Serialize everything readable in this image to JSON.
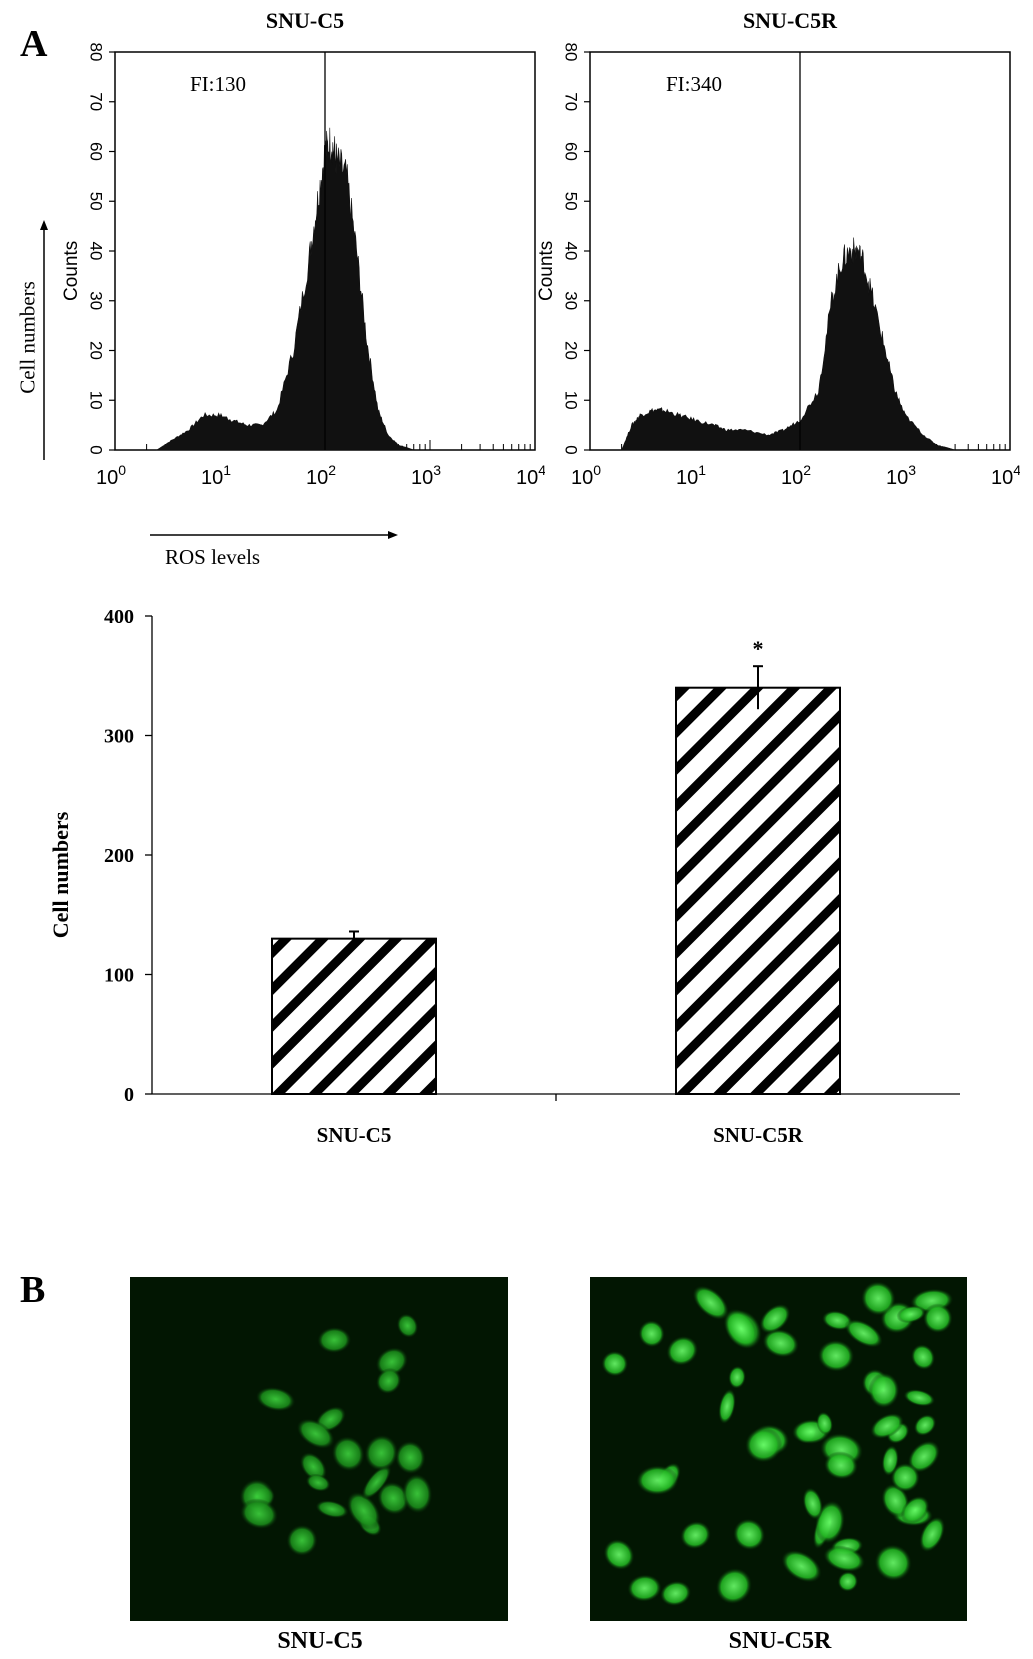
{
  "panel_a": {
    "letter": "A",
    "y_annotation": "Cell numbers",
    "x_annotation": "ROS levels",
    "histograms": [
      {
        "title": "SNU-C5",
        "fi_label": "FI:130",
        "fi_marker": 100,
        "peak_count": 64
      },
      {
        "title": "SNU-C5R",
        "fi_label": "FI:340",
        "fi_marker": 100,
        "peak_count": 42
      }
    ]
  },
  "panel_b": {
    "letter": "B",
    "images": [
      {
        "caption": "SNU-C5"
      },
      {
        "caption": "SNU-C5R"
      }
    ]
  },
  "chart_data": [
    {
      "type": "area",
      "title": "SNU-C5",
      "xlabel": "",
      "ylabel": "Counts",
      "x_scale": "log",
      "xlim": [
        1,
        10000
      ],
      "ylim": [
        0,
        80
      ],
      "x_ticks": [
        "10^0",
        "10^1",
        "10^2",
        "10^3",
        "10^4"
      ],
      "y_ticks": [
        0,
        10,
        20,
        30,
        40,
        50,
        60,
        70,
        80
      ],
      "annotation": "FI:130",
      "x": [
        2.5,
        3.5,
        5,
        7,
        10,
        13,
        18,
        25,
        35,
        50,
        70,
        85,
        100,
        115,
        130,
        160,
        200,
        250,
        320,
        400,
        500,
        600,
        700
      ],
      "y": [
        0,
        2,
        4,
        7,
        7,
        6,
        5,
        5,
        8,
        20,
        38,
        50,
        60,
        62,
        58,
        55,
        40,
        22,
        8,
        3,
        1,
        0.5,
        0
      ]
    },
    {
      "type": "area",
      "title": "SNU-C5R",
      "xlabel": "",
      "ylabel": "Counts",
      "x_scale": "log",
      "xlim": [
        1,
        10000
      ],
      "ylim": [
        0,
        80
      ],
      "x_ticks": [
        "10^0",
        "10^1",
        "10^2",
        "10^3",
        "10^4"
      ],
      "y_ticks": [
        0,
        10,
        20,
        30,
        40,
        50,
        60,
        70,
        80
      ],
      "annotation": "FI:340",
      "x": [
        2,
        2.5,
        3,
        4,
        5,
        7,
        10,
        15,
        20,
        30,
        50,
        70,
        100,
        150,
        200,
        250,
        300,
        350,
        400,
        500,
        650,
        800,
        1000,
        1500,
        2000,
        2500,
        3000
      ],
      "y": [
        0,
        5,
        7,
        8,
        8,
        7,
        6,
        5,
        4,
        4,
        3,
        4,
        6,
        12,
        30,
        38,
        40,
        40,
        38,
        30,
        20,
        12,
        7,
        3,
        1,
        0.5,
        0
      ]
    },
    {
      "type": "bar",
      "title": "",
      "xlabel": "",
      "ylabel": "Cell numbers",
      "categories": [
        "SNU-C5",
        "SNU-C5R"
      ],
      "values": [
        130,
        340
      ],
      "errors": [
        6,
        18
      ],
      "ylim": [
        0,
        400
      ],
      "y_ticks": [
        0,
        100,
        200,
        300,
        400
      ],
      "annotations": [
        "",
        "*"
      ],
      "fill": "black-white diagonal stripes",
      "grid": false
    }
  ]
}
